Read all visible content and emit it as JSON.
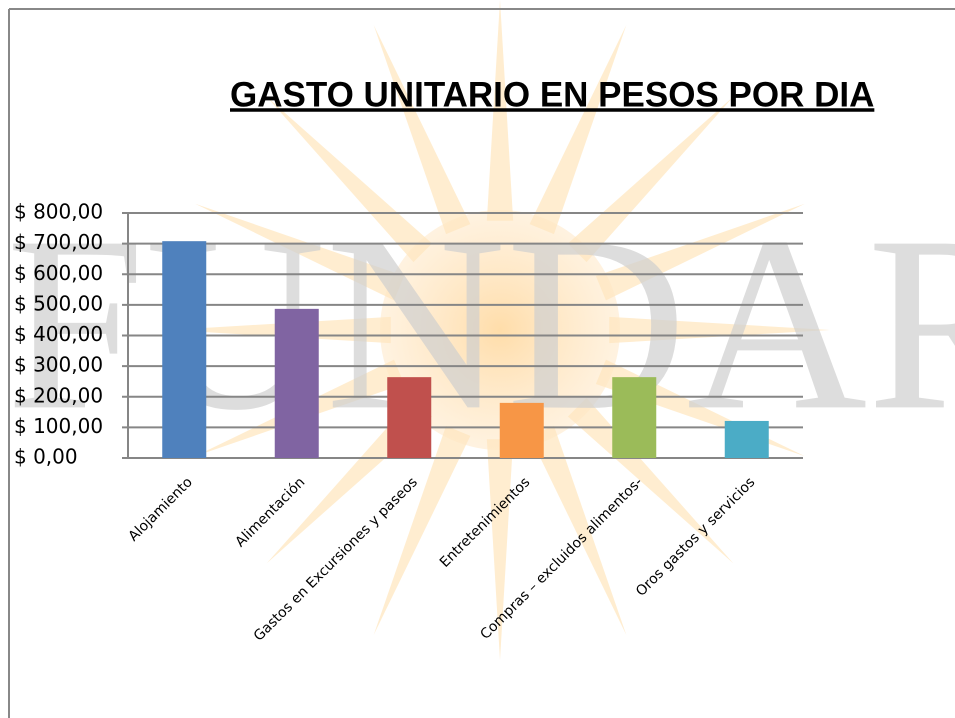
{
  "chart_data": {
    "type": "bar",
    "title": "GASTO UNITARIO EN PESOS POR DIA",
    "watermark": "FUNDAR",
    "categories": [
      "Alojamiento",
      "Alimentación",
      "Gastos en Excursiones y paseos",
      "Entretenimientos",
      "Compras – excluidos alimentos-",
      "Oros gastos y servicios"
    ],
    "values": [
      708,
      487,
      264,
      180,
      264,
      121
    ],
    "colors": [
      "#4f81bd",
      "#8064a2",
      "#c0504d",
      "#f79646",
      "#9bbb59",
      "#4bacc6"
    ],
    "ylim": [
      0,
      800
    ],
    "yticks": [
      {
        "value": 0,
        "label": "$ 0,00"
      },
      {
        "value": 100,
        "label": "$ 100,00"
      },
      {
        "value": 200,
        "label": "$ 200,00"
      },
      {
        "value": 300,
        "label": "$ 300,00"
      },
      {
        "value": 400,
        "label": "$ 400,00"
      },
      {
        "value": 500,
        "label": "$ 500,00"
      },
      {
        "value": 600,
        "label": "$ 600,00"
      },
      {
        "value": 700,
        "label": "$ 700,00"
      },
      {
        "value": 800,
        "label": "$ 800,00"
      }
    ],
    "grid": true
  }
}
